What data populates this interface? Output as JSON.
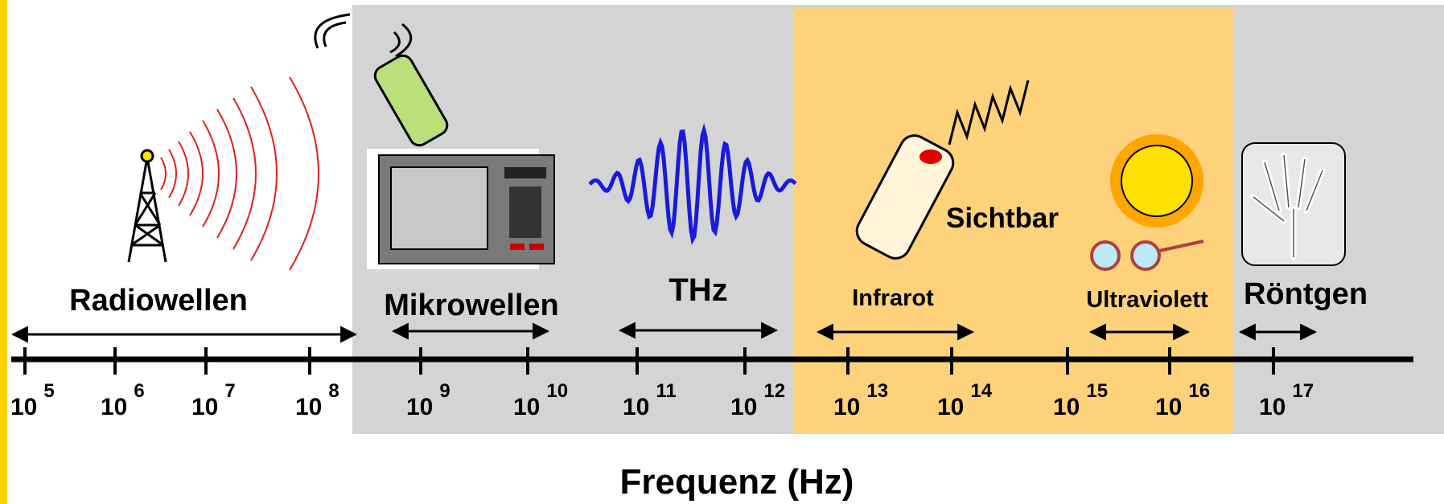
{
  "bands": [
    {
      "label": "Radiowellen"
    },
    {
      "label": "Mikrowellen"
    },
    {
      "label": "THz"
    },
    {
      "label": "Infrarot"
    },
    {
      "label": "Sichtbar"
    },
    {
      "label": "Ultraviolett"
    },
    {
      "label": "Röntgen"
    }
  ],
  "ticks": [
    {
      "base": "10",
      "exponent": "5"
    },
    {
      "base": "10",
      "exponent": "6"
    },
    {
      "base": "10",
      "exponent": "7"
    },
    {
      "base": "10",
      "exponent": "8"
    },
    {
      "base": "10",
      "exponent": "9"
    },
    {
      "base": "10",
      "exponent": "10"
    },
    {
      "base": "10",
      "exponent": "11"
    },
    {
      "base": "10",
      "exponent": "12"
    },
    {
      "base": "10",
      "exponent": "13"
    },
    {
      "base": "10",
      "exponent": "14"
    },
    {
      "base": "10",
      "exponent": "15"
    },
    {
      "base": "10",
      "exponent": "16"
    },
    {
      "base": "10",
      "exponent": "17"
    }
  ],
  "axis_title": "Frequenz (Hz)"
}
